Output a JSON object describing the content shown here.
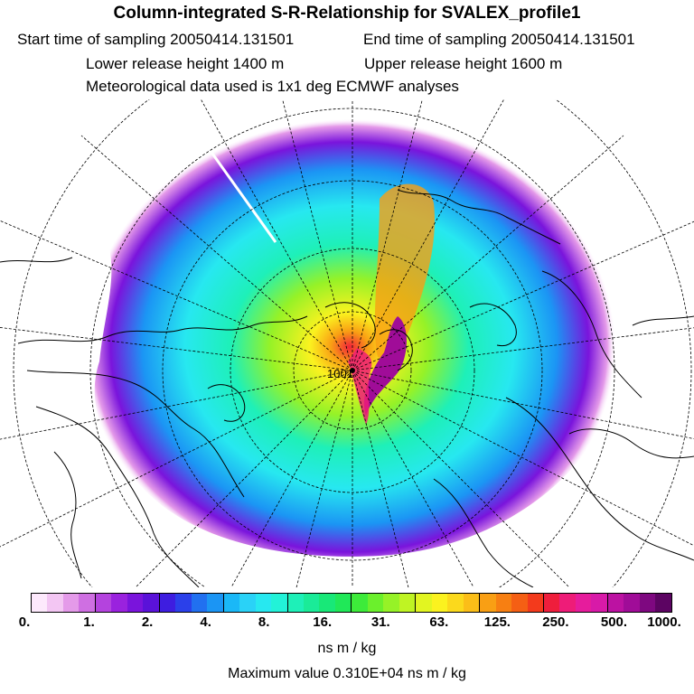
{
  "header": {
    "title": "Column-integrated S-R-Relationship for SVALEX_profile1",
    "start_time": "Start time of sampling 20050414.131501",
    "end_time": "End time of sampling 20050414.131501",
    "lower_height": "Lower release height 1400 m",
    "upper_height": "Upper release height 1600 m",
    "met_data": "Meteorological data used is 1x1 deg ECMWF analyses"
  },
  "map": {
    "projection": "north-polar-stereographic",
    "release_site_label": "1001"
  },
  "legend": {
    "tick_labels": [
      "0.",
      "1.",
      "2.",
      "4.",
      "8.",
      "16.",
      "31.",
      "63.",
      "125.",
      "250.",
      "500.",
      "1000."
    ],
    "colors": [
      "#fde9fc",
      "#f3c6f3",
      "#e49ae9",
      "#cf6fe2",
      "#b443de",
      "#9a22de",
      "#7a14dc",
      "#5a12d9",
      "#3e1de0",
      "#2b40ea",
      "#2170f0",
      "#1b95f4",
      "#1ab8f7",
      "#2ad2f7",
      "#27e8f0",
      "#22f2d8",
      "#1ef0b8",
      "#1aeb98",
      "#18e878",
      "#20e858",
      "#3deb3a",
      "#6bf02c",
      "#96f227",
      "#bff423",
      "#e2f521",
      "#fbf21f",
      "#fbd91c",
      "#fbbe18",
      "#f99f14",
      "#f77f12",
      "#f55f14",
      "#f33a1c",
      "#ef1e3c",
      "#ee1c78",
      "#e61c9c",
      "#d81aa8",
      "#bc12a2",
      "#a00c98",
      "#7e0880",
      "#5c0462"
    ],
    "units": "ns m / kg",
    "max_value": "Maximum value  0.310E+04 ns m / kg"
  }
}
